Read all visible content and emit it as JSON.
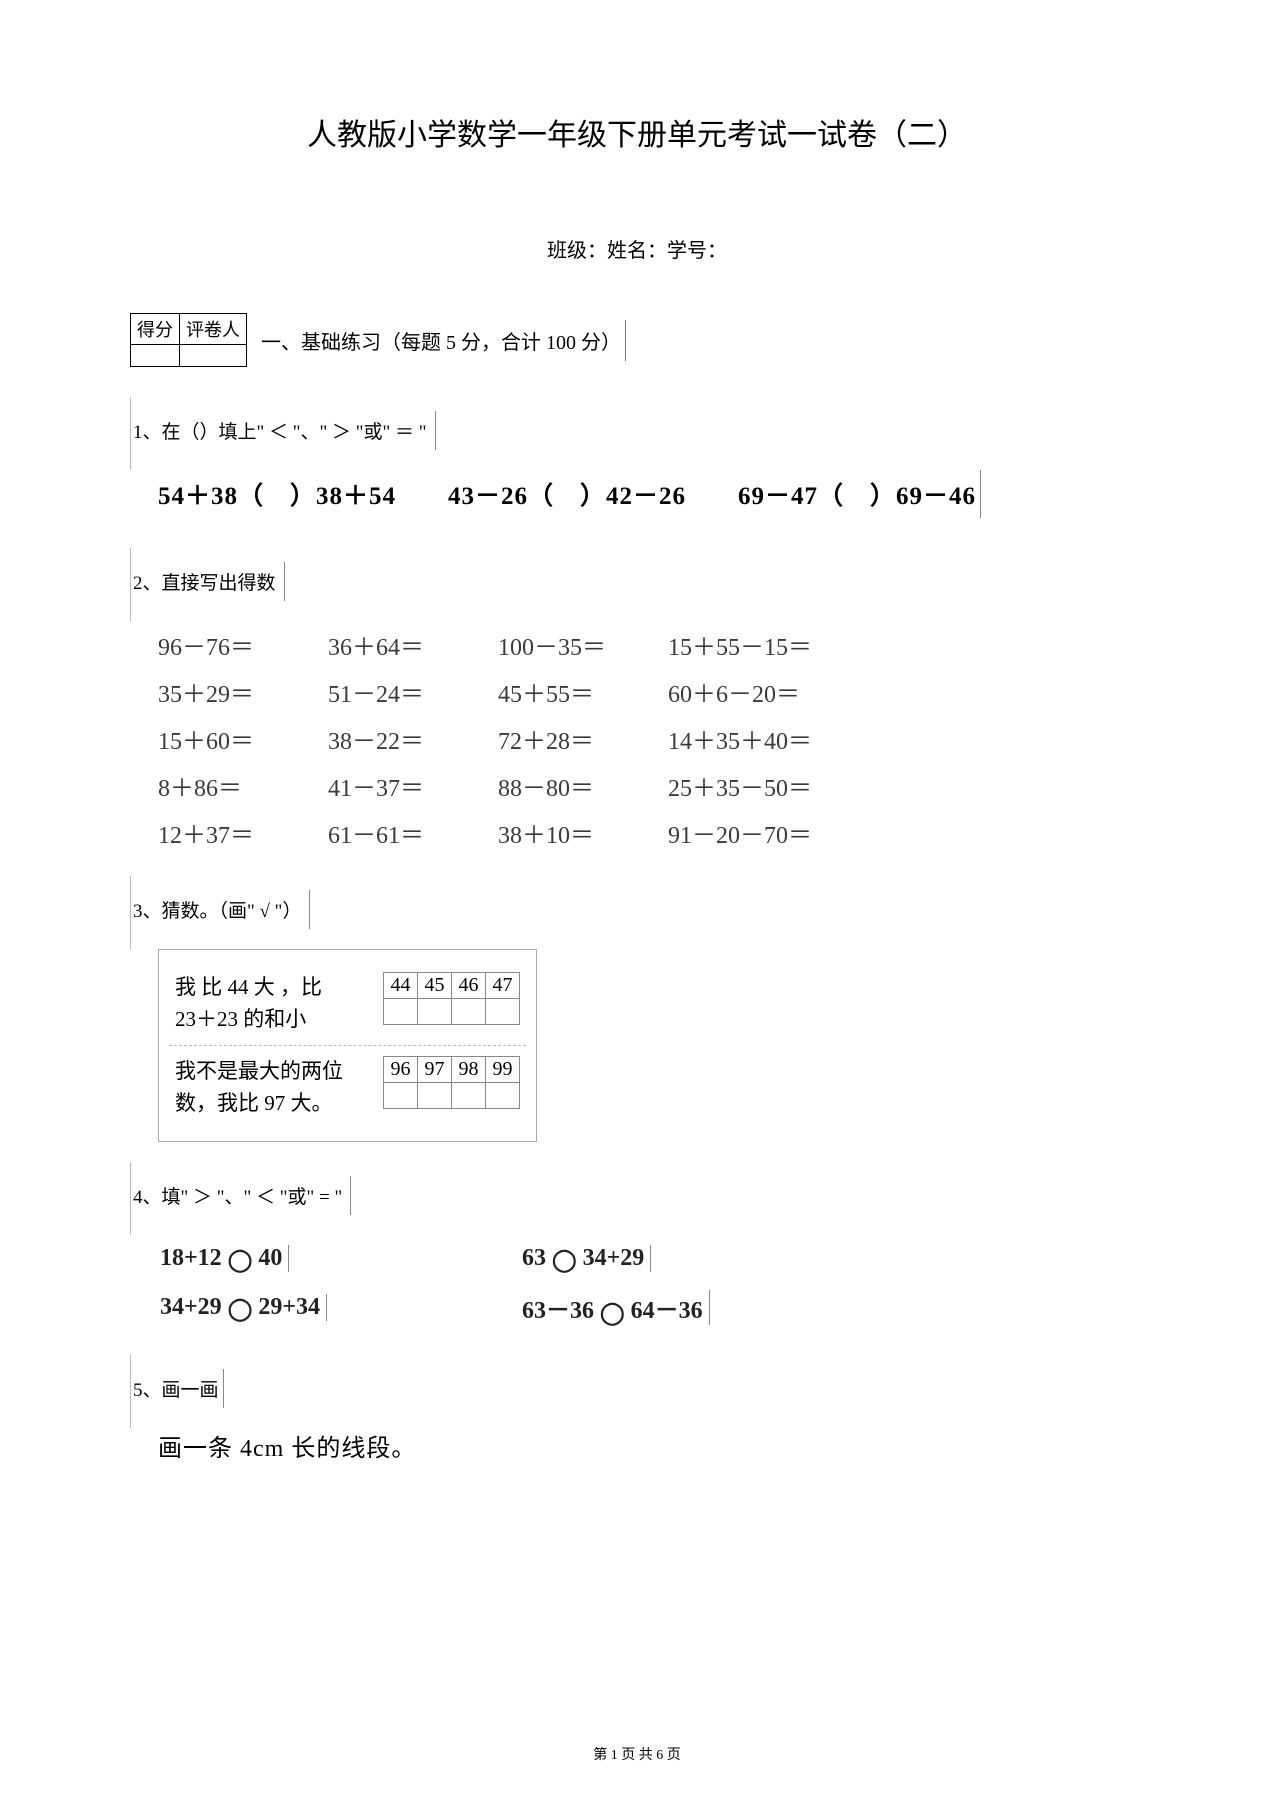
{
  "title": "人教版小学数学一年级下册单元考试一试卷（二）",
  "info_line": "班级：姓名：学号：",
  "score_box": {
    "col1": "得分",
    "col2": "评卷人"
  },
  "section1": "一、基础练习（每题 5 分，合计 100 分）",
  "q1": {
    "label": "1、在（）填上\" ＜ \"、\" ＞ \"或\" ＝ \"",
    "expr": "54＋38（　）38＋54　　43－26（　）42－26　　69－47（　）69－46"
  },
  "q2": {
    "label": "2、直接写出得数",
    "rows": [
      [
        "96－76＝",
        "36＋64＝",
        "100－35＝",
        "15＋55－15＝"
      ],
      [
        "35＋29＝",
        "51－24＝",
        "45＋55＝",
        "60＋6－20＝"
      ],
      [
        "15＋60＝",
        "38－22＝",
        "72＋28＝",
        "14＋35＋40＝"
      ],
      [
        "8＋86＝",
        "41－37＝",
        "88－80＝",
        "25＋35－50＝"
      ],
      [
        "12＋37＝",
        "61－61＝",
        "38＋10＝",
        "91－20－70＝"
      ]
    ]
  },
  "q3": {
    "label": "3、猜数。（画\" √ \"）",
    "rows": [
      {
        "text_l1": "我 比 44 大 ，比",
        "text_l2": "23＋23 的和小",
        "opts": [
          "44",
          "45",
          "46",
          "47"
        ]
      },
      {
        "text_l1": "我不是最大的两位",
        "text_l2": "数，我比 97 大。",
        "opts": [
          "96",
          "97",
          "98",
          "99"
        ]
      }
    ]
  },
  "q4": {
    "label": "4、填\" ＞ \"、\" ＜ \"或\" = \"",
    "rows": [
      [
        "18+12 ◯ 40",
        "63 ◯ 34+29"
      ],
      [
        "34+29 ◯ 29+34",
        "63－36 ◯ 64－36"
      ]
    ]
  },
  "q5": {
    "label": "5、画一画",
    "text": "画一条 4cm 长的线段。"
  },
  "footer": "第 1 页 共 6 页"
}
